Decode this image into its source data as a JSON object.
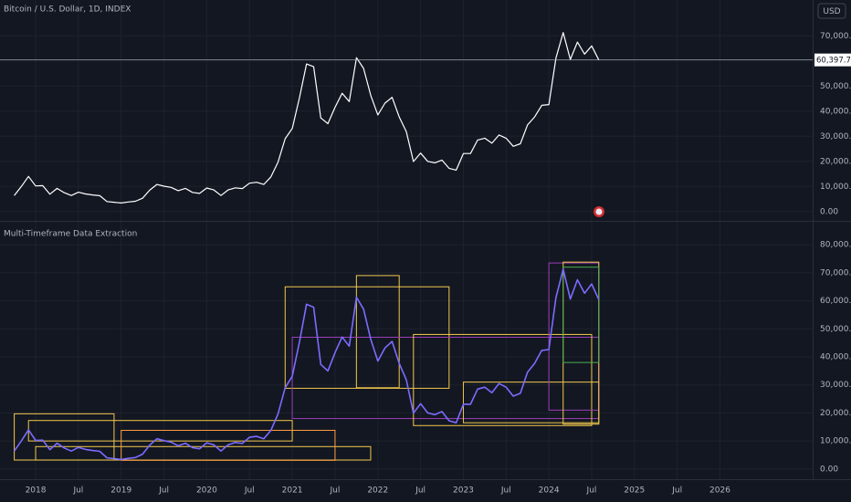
{
  "chart_data": [
    {
      "type": "line",
      "title": "Bitcoin / U.S. Dollar, 1D, INDEX",
      "currency": "USD",
      "x": [
        "2017-10",
        "2017-11",
        "2017-12",
        "2018-01",
        "2018-02",
        "2018-03",
        "2018-04",
        "2018-05",
        "2018-06",
        "2018-07",
        "2018-08",
        "2018-09",
        "2018-10",
        "2018-11",
        "2018-12",
        "2019-01",
        "2019-02",
        "2019-03",
        "2019-04",
        "2019-05",
        "2019-06",
        "2019-07",
        "2019-08",
        "2019-09",
        "2019-10",
        "2019-11",
        "2019-12",
        "2020-01",
        "2020-02",
        "2020-03",
        "2020-04",
        "2020-05",
        "2020-06",
        "2020-07",
        "2020-08",
        "2020-09",
        "2020-10",
        "2020-11",
        "2020-12",
        "2021-01",
        "2021-02",
        "2021-03",
        "2021-04",
        "2021-05",
        "2021-06",
        "2021-07",
        "2021-08",
        "2021-09",
        "2021-10",
        "2021-11",
        "2021-12",
        "2022-01",
        "2022-02",
        "2022-03",
        "2022-04",
        "2022-05",
        "2022-06",
        "2022-07",
        "2022-08",
        "2022-09",
        "2022-10",
        "2022-11",
        "2022-12",
        "2023-01",
        "2023-02",
        "2023-03",
        "2023-04",
        "2023-05",
        "2023-06",
        "2023-07",
        "2023-08",
        "2023-09",
        "2023-10",
        "2023-11",
        "2023-12",
        "2024-01",
        "2024-02",
        "2024-03",
        "2024-04",
        "2024-05",
        "2024-06",
        "2024-07",
        "2024-08"
      ],
      "series": [
        {
          "name": "Bitcoin / U.S. Dollar",
          "color": "#ffffff",
          "values": [
            6400,
            10000,
            14000,
            10200,
            10300,
            6900,
            9200,
            7500,
            6400,
            7700,
            7000,
            6600,
            6300,
            4000,
            3700,
            3400,
            3800,
            4100,
            5300,
            8500,
            10800,
            10100,
            9600,
            8300,
            9200,
            7600,
            7200,
            9350,
            8600,
            6400,
            8600,
            9450,
            9150,
            11300,
            11650,
            10800,
            13800,
            19700,
            29000,
            33100,
            45200,
            58800,
            57700,
            37300,
            35000,
            41500,
            47100,
            43800,
            61300,
            57000,
            46300,
            38500,
            43200,
            45500,
            37700,
            31800,
            19900,
            23300,
            20000,
            19400,
            20500,
            17200,
            16500,
            23100,
            23100,
            28500,
            29200,
            27200,
            30500,
            29200,
            26000,
            27000,
            34500,
            37700,
            42300,
            42600,
            61200,
            71300,
            60600,
            67500,
            62700,
            66000,
            60397.75
          ]
        }
      ],
      "last_price": {
        "value": 60397.75,
        "label": "60,397.75"
      },
      "ylim": [
        -3000,
        77000
      ],
      "yticks": [
        {
          "value": 0,
          "label": "0.00"
        },
        {
          "value": 10000,
          "label": "10,000.00"
        },
        {
          "value": 20000,
          "label": "20,000.00"
        },
        {
          "value": 30000,
          "label": "30,000.00"
        },
        {
          "value": 40000,
          "label": "40,000.00"
        },
        {
          "value": 50000,
          "label": "50,000.00"
        },
        {
          "value": 60000,
          "label": "60,000.00"
        },
        {
          "value": 70000,
          "label": "70,000.00"
        }
      ]
    },
    {
      "type": "box",
      "title": "Multi-Timeframe Data Extraction",
      "boxes": [
        {
          "x0": "2017-10",
          "x1": "2018-12",
          "low": 3200,
          "high": 19700,
          "color": "#f2c94c"
        },
        {
          "x0": "2017-12",
          "x1": "2021-01",
          "low": 10000,
          "high": 17300,
          "color": "#f2c94c"
        },
        {
          "x0": "2018-01",
          "x1": "2021-12",
          "low": 3200,
          "high": 8000,
          "color": "#f2c94c"
        },
        {
          "x0": "2019-01",
          "x1": "2021-07",
          "low": 3100,
          "high": 13800,
          "color": "#ff9f43"
        },
        {
          "x0": "2020-12",
          "x1": "2022-11",
          "low": 28800,
          "high": 65000,
          "color": "#f2c94c"
        },
        {
          "x0": "2021-10",
          "x1": "2022-04",
          "low": 29000,
          "high": 69000,
          "color": "#f2c94c"
        },
        {
          "x0": "2021-01",
          "x1": "2024-08",
          "low": 18000,
          "high": 47000,
          "color": "#9b3fb5"
        },
        {
          "x0": "2022-06",
          "x1": "2024-07",
          "low": 15500,
          "high": 48000,
          "color": "#f2c94c"
        },
        {
          "x0": "2023-01",
          "x1": "2024-08",
          "low": 16500,
          "high": 31000,
          "color": "#f2c94c"
        },
        {
          "x0": "2024-01",
          "x1": "2024-08",
          "low": 21000,
          "high": 73500,
          "color": "#9b3fb5"
        },
        {
          "x0": "2024-03",
          "x1": "2024-08",
          "low": 16000,
          "high": 73800,
          "color": "#f2c94c"
        },
        {
          "x0": "2024-03",
          "x1": "2024-08",
          "low": 38000,
          "high": 72000,
          "color": "#4caf50"
        }
      ],
      "line_color": "#7b6cff",
      "xlim": [
        "2017-08",
        "2027-02"
      ],
      "xticks": [
        {
          "value": "2018-01",
          "label": "2018"
        },
        {
          "value": "2018-07",
          "label": "Jul"
        },
        {
          "value": "2019-01",
          "label": "2019"
        },
        {
          "value": "2019-07",
          "label": "Jul"
        },
        {
          "value": "2020-01",
          "label": "2020"
        },
        {
          "value": "2020-07",
          "label": "Jul"
        },
        {
          "value": "2021-01",
          "label": "2021"
        },
        {
          "value": "2021-07",
          "label": "Jul"
        },
        {
          "value": "2022-01",
          "label": "2022"
        },
        {
          "value": "2022-07",
          "label": "Jul"
        },
        {
          "value": "2023-01",
          "label": "2023"
        },
        {
          "value": "2023-07",
          "label": "Jul"
        },
        {
          "value": "2024-01",
          "label": "2024"
        },
        {
          "value": "2024-07",
          "label": "Jul"
        },
        {
          "value": "2025-01",
          "label": "2025"
        },
        {
          "value": "2025-07",
          "label": "Jul"
        },
        {
          "value": "2026-01",
          "label": "2026"
        }
      ],
      "ylim": [
        -2000,
        82000
      ],
      "yticks": [
        {
          "value": 0,
          "label": "0.00"
        },
        {
          "value": 10000,
          "label": "10,000.00"
        },
        {
          "value": 20000,
          "label": "20,000.00"
        },
        {
          "value": 30000,
          "label": "30,000.00"
        },
        {
          "value": 40000,
          "label": "40,000.00"
        },
        {
          "value": 50000,
          "label": "50,000.00"
        },
        {
          "value": 60000,
          "label": "60,000.00"
        },
        {
          "value": 70000,
          "label": "70,000.00"
        },
        {
          "value": 80000,
          "label": "80,000.00"
        }
      ]
    }
  ]
}
